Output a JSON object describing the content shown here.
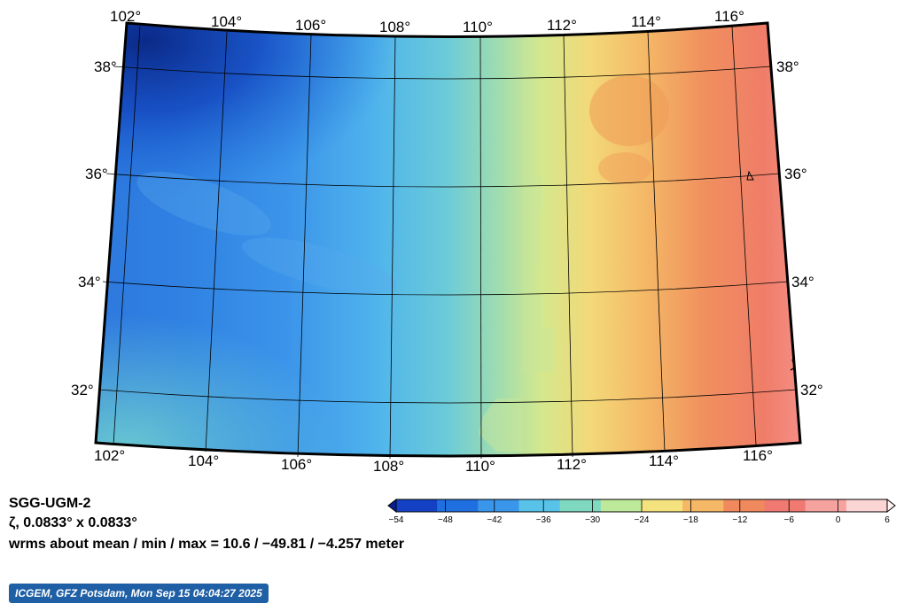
{
  "map": {
    "lon_range": [
      101.5,
      116.8
    ],
    "lat_range": [
      31.0,
      38.8
    ],
    "lon_ticks": [
      "102°",
      "104°",
      "106°",
      "108°",
      "110°",
      "112°",
      "114°",
      "116°"
    ],
    "lat_ticks": [
      "32°",
      "34°",
      "36°",
      "38°"
    ],
    "colors": {
      "deep_blue": "#0b2b8c",
      "blue": "#1f6fdc",
      "light_blue": "#4aa3ea",
      "cyan": "#52c6dc",
      "teal": "#7fd7c4",
      "green_yellow": "#c7e892",
      "yellow": "#f4d97a",
      "orange": "#f2a05a",
      "red": "#ef7a63",
      "pink": "#f6908a"
    }
  },
  "info": {
    "model": "SGG-UGM-2",
    "grid": "ζ, 0.0833° x 0.0833°",
    "stats": "wrms about mean / min / max = 10.6 / −49.81 / −4.257 meter"
  },
  "colorbar": {
    "ticks": [
      "−54",
      "−48",
      "−42",
      "−36",
      "−30",
      "−24",
      "−18",
      "−12",
      "−6",
      "0",
      "6"
    ],
    "colors": [
      "#0a1f8f",
      "#1440c4",
      "#1f6fe0",
      "#3a96ea",
      "#58c2e8",
      "#7fd9c0",
      "#bfe99a",
      "#f3e27e",
      "#f5b866",
      "#f08a5c",
      "#f07a72",
      "#f6a3a0",
      "#fbd5d3",
      "#fff2f2"
    ]
  },
  "credit": "ICGEM, GFZ Potsdam, Mon Sep 15 04:04:27 2025"
}
